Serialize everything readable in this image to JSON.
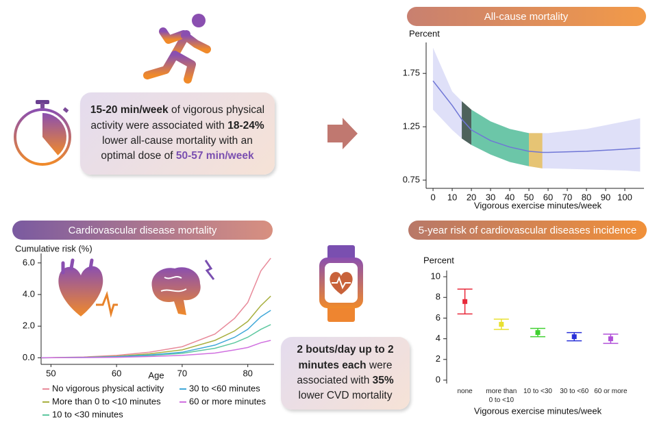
{
  "chart_data": [
    {
      "type": "line",
      "title": "All-cause mortality",
      "y_label": "Percent",
      "x_label": "Vigorous exercise minutes/week",
      "x": [
        0,
        10,
        15,
        20,
        30,
        40,
        50,
        57,
        60,
        80,
        100,
        108
      ],
      "values": [
        1.68,
        1.45,
        1.32,
        1.22,
        1.12,
        1.06,
        1.02,
        1.01,
        1.01,
        1.02,
        1.04,
        1.05
      ],
      "color": "#6f76d6",
      "band": {
        "upper": [
          1.99,
          1.58,
          1.49,
          1.41,
          1.3,
          1.23,
          1.19,
          1.19,
          1.19,
          1.23,
          1.3,
          1.33
        ],
        "lower": [
          1.41,
          1.22,
          1.14,
          1.08,
          0.99,
          0.92,
          0.88,
          0.86,
          0.86,
          0.85,
          0.84,
          0.83
        ],
        "color": "#dfe0f8"
      },
      "highlights": [
        {
          "x": [
            15,
            20
          ],
          "color": "#4e625c"
        },
        {
          "x": [
            20,
            50
          ],
          "color": "#6cc6a8"
        },
        {
          "x": [
            50,
            57
          ],
          "color": "#e6c474"
        }
      ],
      "xlim": [
        -3.6,
        110
      ],
      "ylim": [
        0.705,
        2.04
      ],
      "xticks": [
        0,
        10,
        20,
        30,
        40,
        50,
        60,
        70,
        80,
        90,
        100
      ],
      "yticks": [
        0.75,
        1.25,
        1.75
      ]
    },
    {
      "type": "line",
      "title": "Cardiovascular disease mortality",
      "y_label": "Cumulative risk (%)",
      "x_label": "Age",
      "x": [
        48.5,
        55,
        60,
        65,
        70,
        75,
        78,
        80,
        82,
        83.5
      ],
      "series": [
        {
          "name": "No vigorous physical activity",
          "color": "#e88a9a",
          "values": [
            0,
            0.05,
            0.15,
            0.35,
            0.7,
            1.5,
            2.5,
            3.5,
            5.5,
            6.3
          ]
        },
        {
          "name": "More than 0 to <10 minutes",
          "color": "#a8b040",
          "values": [
            0,
            0.03,
            0.1,
            0.25,
            0.5,
            1.1,
            1.7,
            2.3,
            3.3,
            3.9
          ]
        },
        {
          "name": "10 to <30 minutes",
          "color": "#5ec8a0",
          "values": [
            0,
            0.02,
            0.06,
            0.14,
            0.28,
            0.6,
            0.95,
            1.3,
            1.8,
            2.1
          ]
        },
        {
          "name": "30 to <60 minutes",
          "color": "#40a8d8",
          "values": [
            0,
            0.02,
            0.07,
            0.18,
            0.35,
            0.8,
            1.3,
            1.8,
            2.6,
            3.0
          ]
        },
        {
          "name": "60 or more minutes",
          "color": "#d070e0",
          "values": [
            0,
            0.01,
            0.03,
            0.08,
            0.15,
            0.3,
            0.5,
            0.65,
            0.95,
            1.1
          ]
        }
      ],
      "legend": "below",
      "xlim": [
        48.5,
        84
      ],
      "ylim": [
        -0.2,
        6.6
      ],
      "xticks": [
        50,
        60,
        70,
        80
      ],
      "yticks": [
        {
          "value": 0,
          "label": "0.0"
        },
        {
          "value": 2,
          "label": "2.0"
        },
        {
          "value": 4,
          "label": "4.0"
        },
        {
          "value": 6,
          "label": "6.0"
        }
      ]
    },
    {
      "type": "errorbar",
      "title": "5-year risk of cardiovascular diseases incidence",
      "y_label": "Percent",
      "x_label": "Vigorous exercise minutes/week",
      "categories": [
        "none",
        "more than 0 to <10",
        "10 to <30",
        "30 to <60",
        "60 or more"
      ],
      "values": [
        7.6,
        5.4,
        4.6,
        4.2,
        4.0
      ],
      "errors": [
        1.2,
        0.5,
        0.4,
        0.4,
        0.45
      ],
      "colors": [
        "#e8293a",
        "#e8e030",
        "#40d030",
        "#2830d8",
        "#b050d8"
      ],
      "ylim": [
        0,
        10.6
      ],
      "yticks": [
        0,
        2,
        4,
        6,
        8,
        10
      ]
    }
  ],
  "callouts": [
    {
      "runs": [
        {
          "text": "15-20 min/week",
          "bold": true
        },
        {
          "text": " of vigorous physical activity were associated with "
        },
        {
          "text": "18-24%",
          "bold": true
        },
        {
          "text": " lower all-cause mortality with an optimal dose of "
        },
        {
          "text": "50-57 min/week",
          "bold": true,
          "color": "#7a4fb0"
        }
      ]
    },
    {
      "runs": [
        {
          "text": "2 bouts/day up to 2 minutes each",
          "bold": true
        },
        {
          "text": " were associated with "
        },
        {
          "text": "35%",
          "bold": true
        },
        {
          "text": " lower CVD mortality"
        }
      ]
    }
  ]
}
